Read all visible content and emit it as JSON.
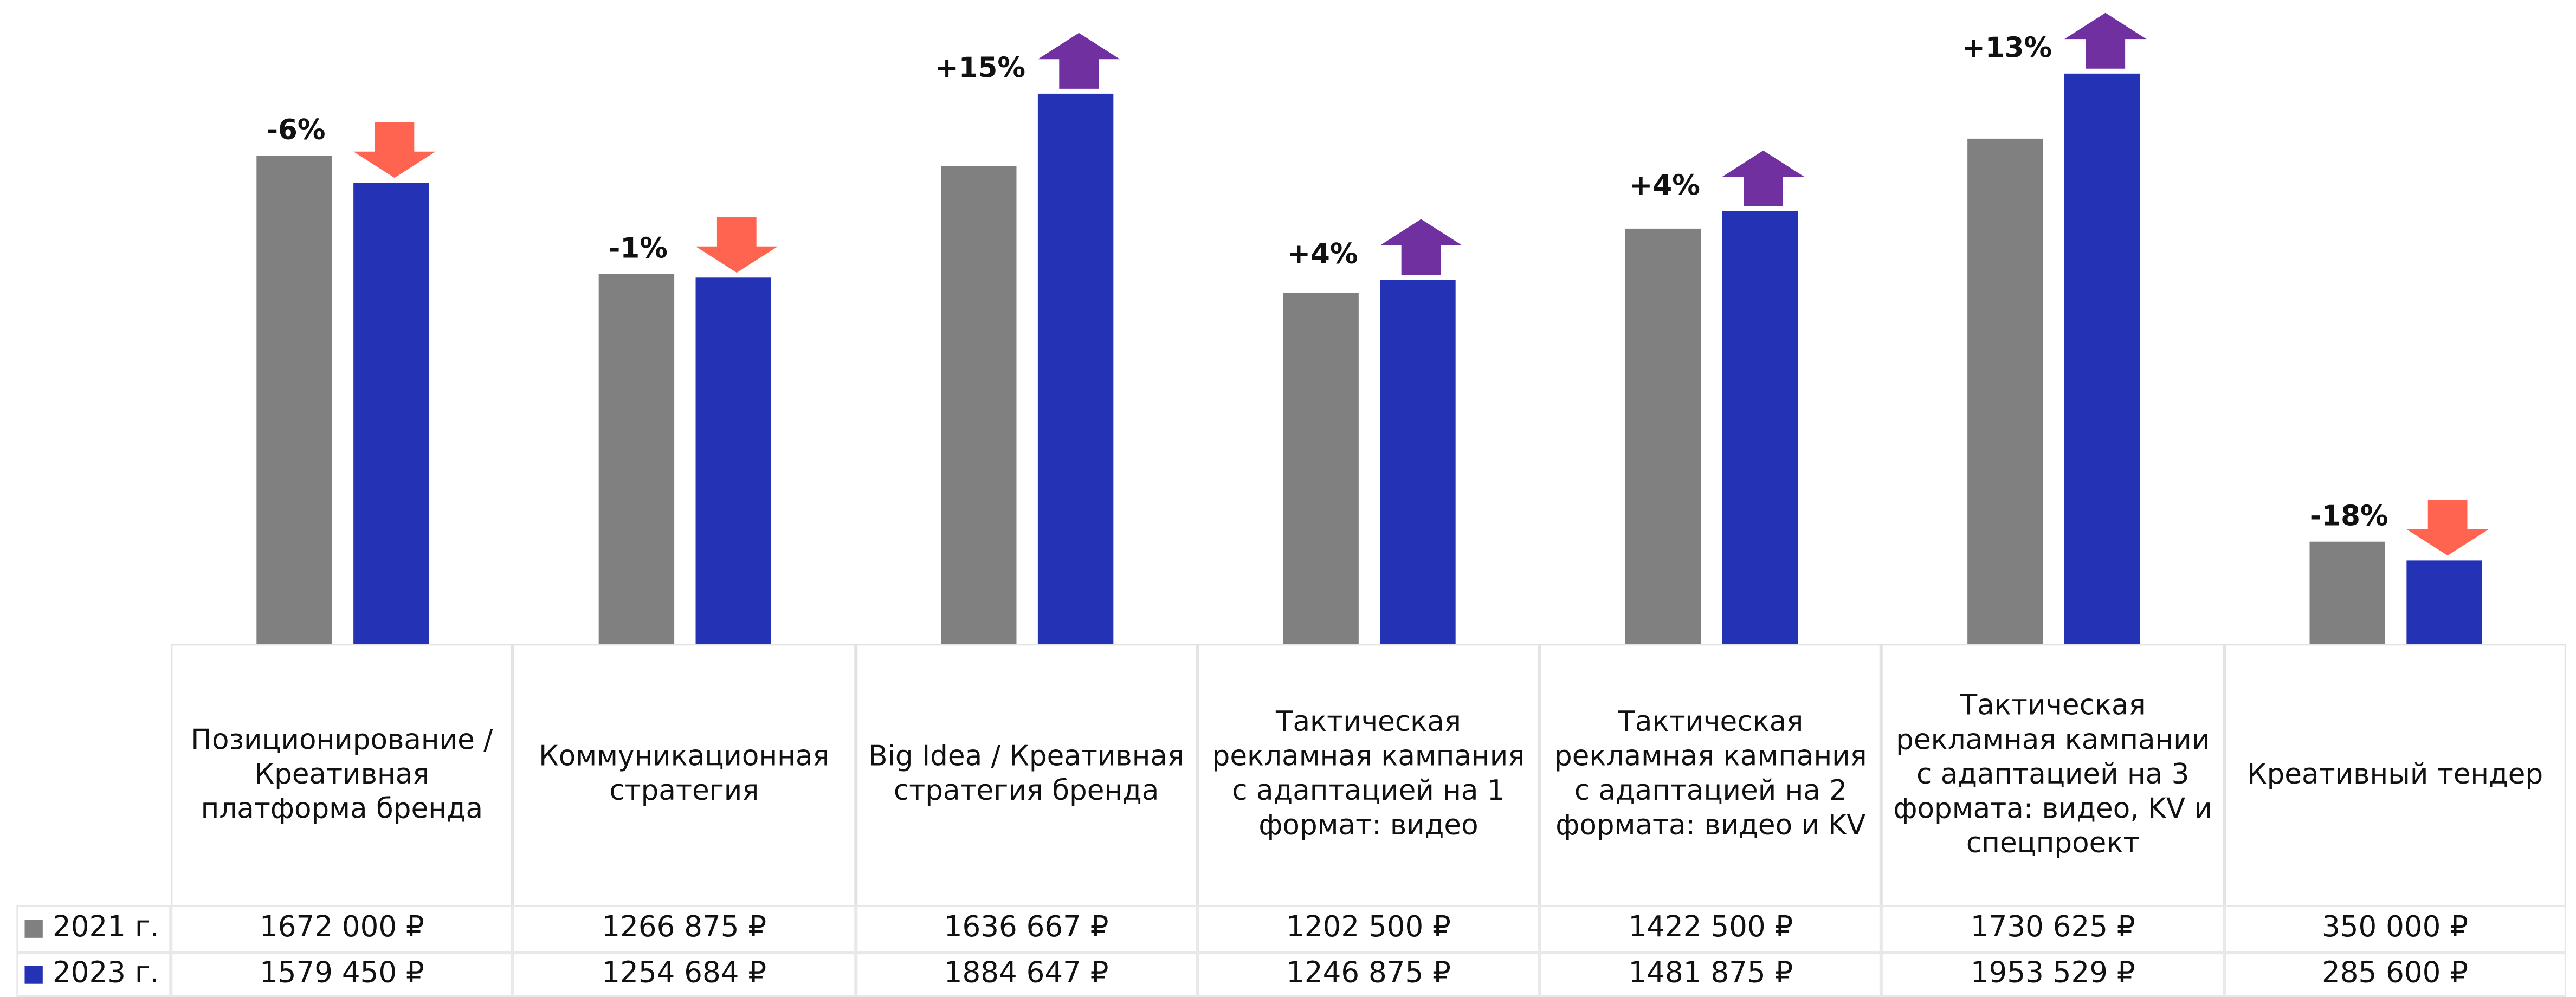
{
  "chart_data": {
    "type": "bar",
    "categories": [
      "Позиционирование / Креативная платформа бренда",
      "Коммуникационная стратегия",
      "Big Idea / Креативная стратегия бренда",
      "Тактическая рекламная кампания с адаптацией на 1 формат: видео",
      "Тактическая рекламная кампания с адаптацией на 2 формата: видео и KV",
      "Тактическая рекламная кампании с адаптацией на 3 формата: видео, KV и спецпроект",
      "Креативный тендер"
    ],
    "series": [
      {
        "name": "2021 г.",
        "color": "#808080",
        "values": [
          1672000,
          1266875,
          1636667,
          1202500,
          1422500,
          1730625,
          350000
        ],
        "value_labels": [
          "1672 000 ₽",
          "1266 875 ₽",
          "1636 667 ₽",
          "1202 500 ₽",
          "1422 500 ₽",
          "1730 625 ₽",
          "350 000 ₽"
        ]
      },
      {
        "name": "2023 г.",
        "color": "#2433b5",
        "values": [
          1579450,
          1254684,
          1884647,
          1246875,
          1481875,
          1953529,
          285600
        ],
        "value_labels": [
          "1579 450 ₽",
          "1254 684 ₽",
          "1884 647 ₽",
          "1246 875 ₽",
          "1481 875 ₽",
          "1953 529 ₽",
          "285 600 ₽"
        ]
      }
    ],
    "change_values": [
      -6,
      -1,
      15,
      4,
      4,
      13,
      -18
    ],
    "change_labels": [
      "-6%",
      "-1%",
      "+15%",
      "+4%",
      "+4%",
      "+13%",
      "-18%"
    ],
    "up_color": "#7030a0",
    "down_color": "#ff6450",
    "ylim": [
      0,
      2200000
    ]
  }
}
